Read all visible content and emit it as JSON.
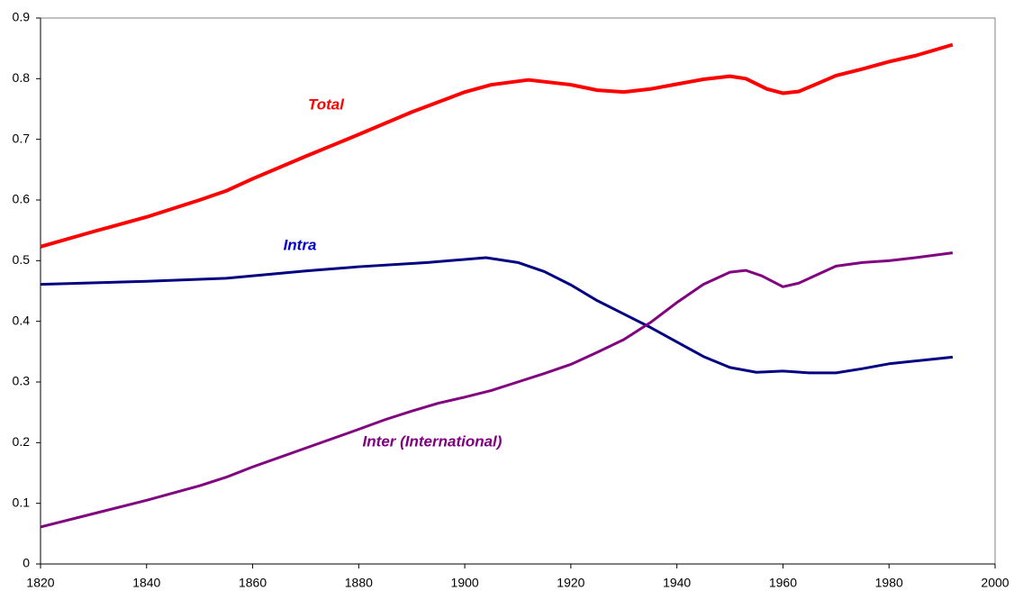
{
  "chart_data": {
    "type": "line",
    "xlim": [
      1820,
      2000
    ],
    "xticks": [
      1820,
      1840,
      1860,
      1880,
      1900,
      1920,
      1940,
      1960,
      1980,
      2000
    ],
    "ylim": [
      0,
      0.9
    ],
    "yticks": [
      0,
      0.1,
      0.2,
      0.3,
      0.4,
      0.5,
      0.6,
      0.7,
      0.8,
      0.9
    ],
    "grid": false,
    "series": [
      {
        "name": "Total",
        "color": "#ff0000",
        "x": [
          1820,
          1830,
          1840,
          1850,
          1855,
          1860,
          1870,
          1880,
          1890,
          1900,
          1905,
          1912,
          1920,
          1925,
          1930,
          1935,
          1940,
          1945,
          1950,
          1953,
          1957,
          1960,
          1963,
          1966,
          1970,
          1975,
          1980,
          1985,
          1992
        ],
        "values": [
          0.523,
          0.548,
          0.572,
          0.6,
          0.615,
          0.635,
          0.672,
          0.708,
          0.745,
          0.778,
          0.79,
          0.798,
          0.79,
          0.781,
          0.778,
          0.783,
          0.791,
          0.799,
          0.804,
          0.8,
          0.783,
          0.776,
          0.779,
          0.79,
          0.805,
          0.816,
          0.828,
          0.838,
          0.856
        ]
      },
      {
        "name": "Intra",
        "color": "#000080",
        "x": [
          1820,
          1840,
          1855,
          1870,
          1880,
          1893,
          1904,
          1910,
          1915,
          1920,
          1925,
          1930,
          1935,
          1940,
          1945,
          1950,
          1955,
          1960,
          1965,
          1970,
          1975,
          1980,
          1992
        ],
        "values": [
          0.461,
          0.466,
          0.471,
          0.483,
          0.49,
          0.497,
          0.505,
          0.497,
          0.482,
          0.46,
          0.434,
          0.412,
          0.39,
          0.366,
          0.342,
          0.324,
          0.316,
          0.318,
          0.315,
          0.315,
          0.322,
          0.33,
          0.341
        ]
      },
      {
        "name": "Inter (International)",
        "color": "#800080",
        "x": [
          1820,
          1830,
          1840,
          1850,
          1855,
          1860,
          1870,
          1880,
          1885,
          1890,
          1895,
          1900,
          1905,
          1910,
          1915,
          1920,
          1925,
          1930,
          1935,
          1940,
          1945,
          1950,
          1953,
          1956,
          1960,
          1963,
          1966,
          1970,
          1975,
          1980,
          1985,
          1992
        ],
        "values": [
          0.061,
          0.083,
          0.105,
          0.129,
          0.143,
          0.16,
          0.191,
          0.222,
          0.238,
          0.252,
          0.265,
          0.275,
          0.286,
          0.3,
          0.314,
          0.329,
          0.349,
          0.37,
          0.398,
          0.431,
          0.461,
          0.481,
          0.484,
          0.475,
          0.457,
          0.463,
          0.475,
          0.491,
          0.497,
          0.5,
          0.505,
          0.513
        ]
      }
    ]
  }
}
